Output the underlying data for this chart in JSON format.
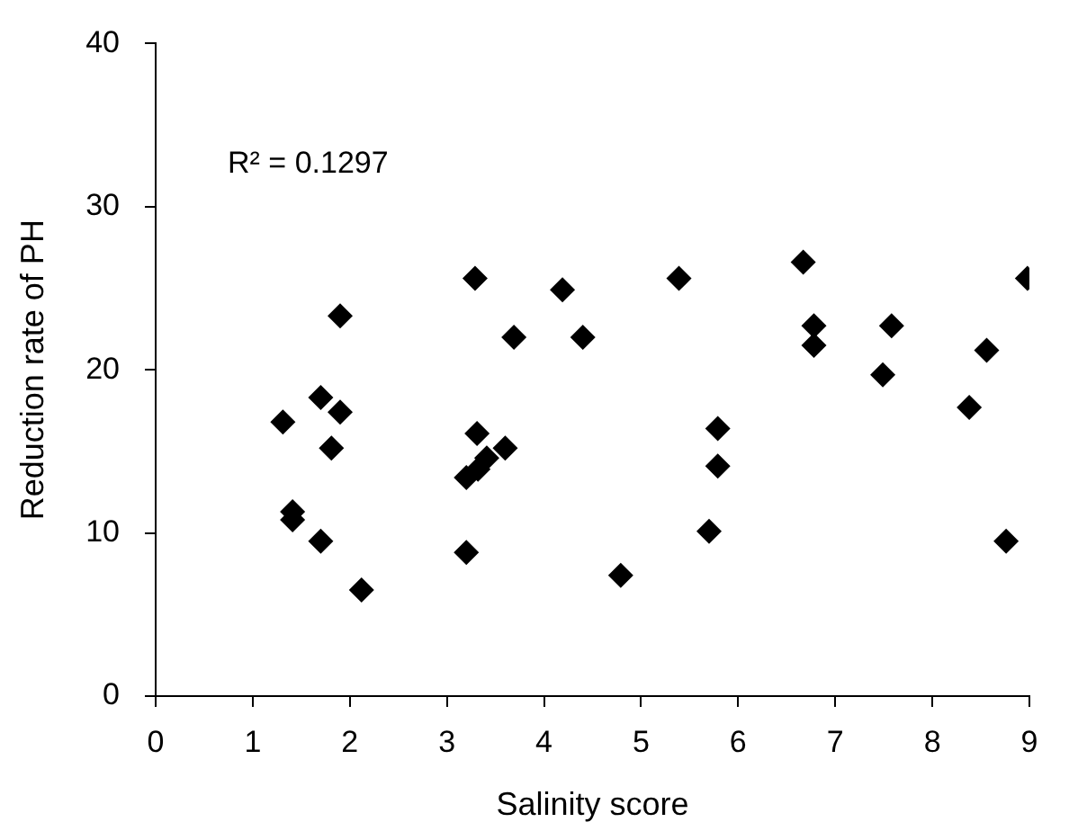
{
  "chart_data": {
    "type": "scatter",
    "xlabel": "Salinity score",
    "ylabel": "Reduction rate of PH",
    "annotations": [
      "R² = 0.1297"
    ],
    "x": [
      3.29,
      4.19,
      1.9,
      3.69,
      4.4,
      1.7,
      1.9,
      1.31,
      1.81,
      3.31,
      3.6,
      3.41,
      3.32,
      3.2,
      1.41,
      1.41,
      1.7,
      3.2,
      2.12,
      5.39,
      4.79,
      5.79,
      5.79,
      5.7,
      6.67,
      6.78,
      6.78,
      7.58,
      7.49,
      8.38,
      8.56,
      8.76,
      8.98
    ],
    "series": [
      {
        "color": "#000000",
        "values": [
          25.6,
          24.9,
          23.3,
          22.0,
          22.0,
          18.3,
          17.4,
          16.8,
          15.2,
          16.1,
          15.2,
          14.6,
          13.9,
          13.4,
          11.3,
          10.8,
          9.5,
          8.8,
          6.5,
          25.6,
          7.4,
          16.4,
          14.1,
          10.1,
          26.6,
          22.7,
          21.5,
          22.7,
          19.7,
          17.7,
          21.2,
          9.5,
          25.6
        ]
      }
    ],
    "xlim": [
      0,
      9
    ],
    "xticks": [
      0,
      1,
      2,
      3,
      4,
      5,
      6,
      7,
      8,
      9
    ],
    "ylim": [
      0,
      40
    ],
    "yticks": [
      0,
      10,
      20,
      30,
      40
    ],
    "grid": false,
    "legend": false,
    "marker": "diamond"
  }
}
